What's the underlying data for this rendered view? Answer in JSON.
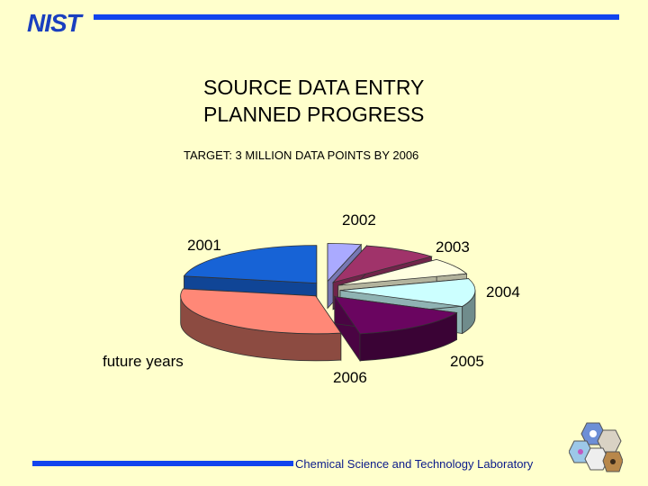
{
  "logo": {
    "text": "NIST"
  },
  "title_lines": [
    "SOURCE DATA ENTRY",
    "PLANNED PROGRESS"
  ],
  "subtitle": "TARGET:  3 MILLION DATA POINTS BY 2006",
  "footer": "Chemical Science and Technology Laboratory",
  "colors": {
    "background": "#ffffcc",
    "rule": "#1144ee"
  },
  "chart_data": {
    "type": "pie",
    "title": "SOURCE DATA ENTRY PLANNED PROGRESS",
    "subtitle": "TARGET:  3 MILLION DATA POINTS BY 2006",
    "style": "3d exploded pie",
    "slices": [
      {
        "label": "2001",
        "value": 22,
        "color": "#1763d6"
      },
      {
        "label": "2002",
        "value": 4,
        "color": "#aaaaff"
      },
      {
        "label": "2003",
        "value": 9,
        "color": "#a0336a"
      },
      {
        "label": "2004",
        "value": 7,
        "color": "#ffffe0"
      },
      {
        "label": "2005",
        "value": 12,
        "color": "#ccffff"
      },
      {
        "label": "2006",
        "value": 15,
        "color": "#6a0560"
      },
      {
        "label": "future years",
        "value": 31,
        "color": "#ff8877"
      }
    ],
    "legend": "none"
  }
}
